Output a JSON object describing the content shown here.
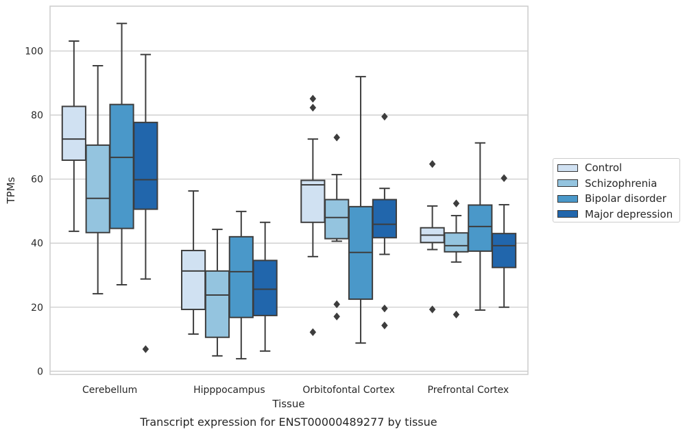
{
  "chart_data": {
    "type": "box",
    "title": "Transcript expression for ENST00000489277 by tissue",
    "xlabel": "Tissue",
    "ylabel": "TPMs",
    "ylim": [
      -1,
      114
    ],
    "yticks": [
      0,
      20,
      40,
      60,
      80,
      100
    ],
    "grid": true,
    "legend_position": "right",
    "categories": [
      "Cerebellum",
      "Hipppocampus",
      "Orbitofontal Cortex",
      "Prefrontal Cortex"
    ],
    "series": [
      {
        "name": "Control",
        "color": "#d0e1f2",
        "boxes": [
          {
            "whisker_low": 43.7,
            "q1": 65.9,
            "median": 72.5,
            "q3": 82.7,
            "whisker_high": 103.1,
            "outliers": []
          },
          {
            "whisker_low": 11.6,
            "q1": 19.3,
            "median": 31.3,
            "q3": 37.7,
            "whisker_high": 56.3,
            "outliers": []
          },
          {
            "whisker_low": 35.8,
            "q1": 46.5,
            "median": 58.2,
            "q3": 59.6,
            "whisker_high": 72.5,
            "outliers": [
              85.1,
              82.3,
              12.2
            ]
          },
          {
            "whisker_low": 38.0,
            "q1": 40.2,
            "median": 42.5,
            "q3": 44.8,
            "whisker_high": 51.6,
            "outliers": [
              64.7,
              19.3
            ]
          }
        ]
      },
      {
        "name": "Schizophrenia",
        "color": "#94c4df",
        "boxes": [
          {
            "whisker_low": 24.2,
            "q1": 43.3,
            "median": 54.0,
            "q3": 70.6,
            "whisker_high": 95.4,
            "outliers": []
          },
          {
            "whisker_low": 4.8,
            "q1": 10.6,
            "median": 23.8,
            "q3": 31.3,
            "whisker_high": 44.3,
            "outliers": []
          },
          {
            "whisker_low": 40.6,
            "q1": 41.4,
            "median": 48.0,
            "q3": 53.6,
            "whisker_high": 61.4,
            "outliers": [
              73.0,
              20.9,
              17.1
            ]
          },
          {
            "whisker_low": 34.1,
            "q1": 37.3,
            "median": 39.2,
            "q3": 43.2,
            "whisker_high": 48.6,
            "outliers": [
              52.4,
              17.7
            ]
          }
        ]
      },
      {
        "name": "Bipolar disorder",
        "color": "#4a98c9",
        "boxes": [
          {
            "whisker_low": 27.0,
            "q1": 44.6,
            "median": 66.8,
            "q3": 83.3,
            "whisker_high": 108.6,
            "outliers": []
          },
          {
            "whisker_low": 3.9,
            "q1": 16.8,
            "median": 31.1,
            "q3": 42.0,
            "whisker_high": 49.9,
            "outliers": []
          },
          {
            "whisker_low": 8.8,
            "q1": 22.5,
            "median": 37.1,
            "q3": 51.4,
            "whisker_high": 92.0,
            "outliers": []
          },
          {
            "whisker_low": 19.1,
            "q1": 37.5,
            "median": 45.2,
            "q3": 51.9,
            "whisker_high": 71.3,
            "outliers": []
          }
        ]
      },
      {
        "name": "Major depression",
        "color": "#2166ac",
        "boxes": [
          {
            "whisker_low": 28.8,
            "q1": 50.6,
            "median": 59.8,
            "q3": 77.7,
            "whisker_high": 98.9,
            "outliers": [
              6.9
            ]
          },
          {
            "whisker_low": 6.3,
            "q1": 17.4,
            "median": 25.6,
            "q3": 34.6,
            "whisker_high": 46.5,
            "outliers": []
          },
          {
            "whisker_low": 36.5,
            "q1": 41.7,
            "median": 45.9,
            "q3": 53.6,
            "whisker_high": 57.1,
            "outliers": [
              79.5,
              19.6,
              14.3
            ]
          },
          {
            "whisker_low": 20.0,
            "q1": 32.4,
            "median": 39.2,
            "q3": 43.0,
            "whisker_high": 52.0,
            "outliers": [
              60.3
            ]
          }
        ]
      }
    ]
  }
}
